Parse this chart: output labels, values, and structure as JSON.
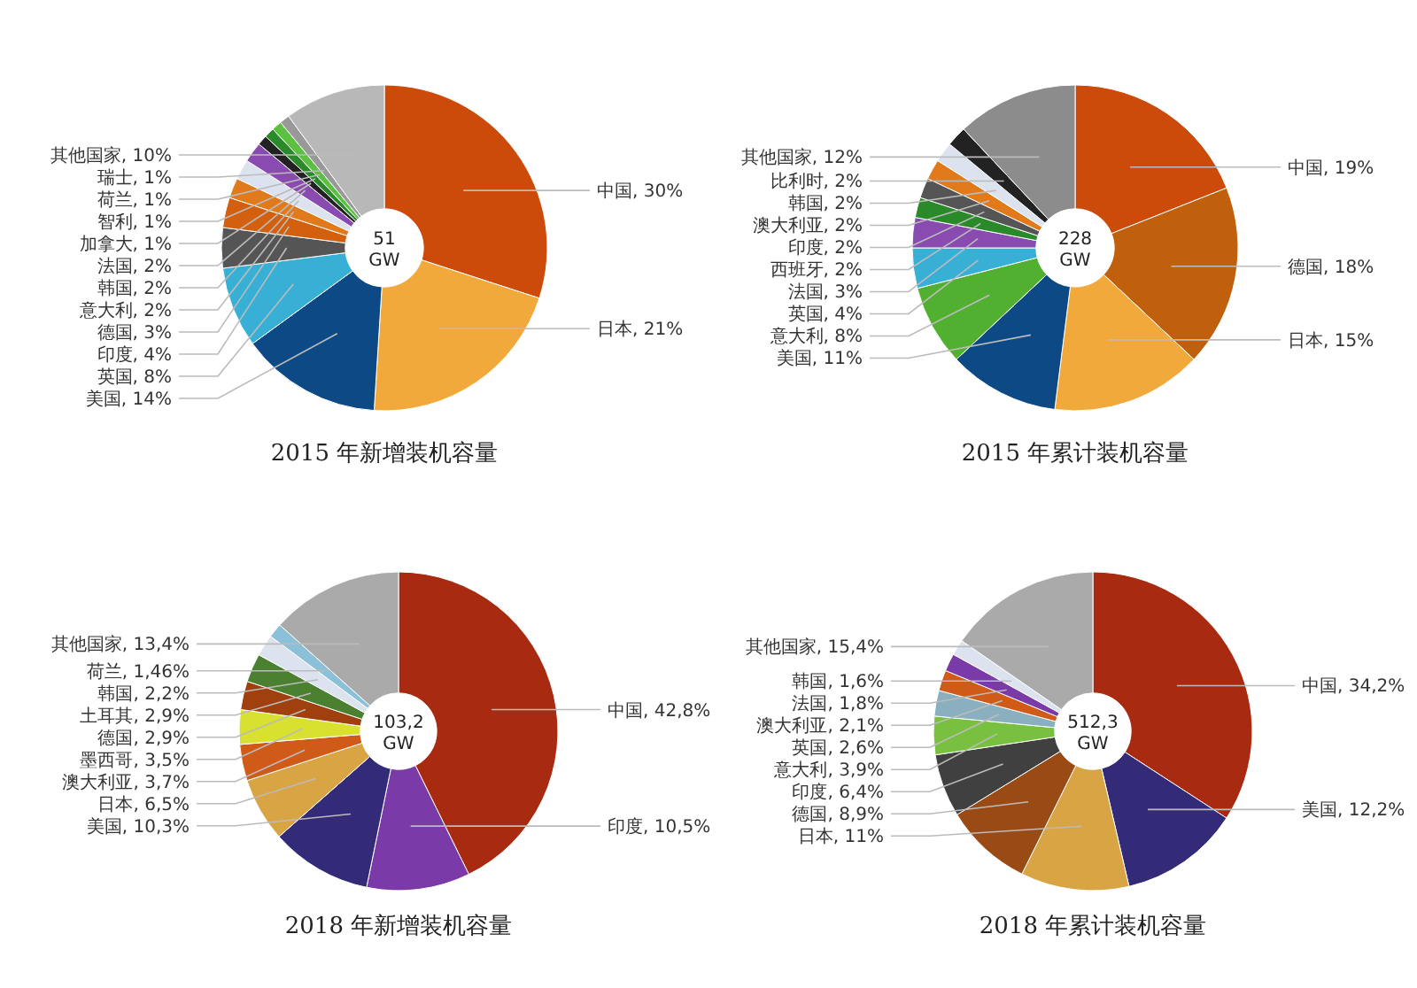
{
  "chart_data": [
    {
      "type": "donut",
      "title": "2015 年新增装机容量",
      "annotations": [
        "51 GW"
      ],
      "categories": [
        "中国",
        "日本",
        "美国",
        "英国",
        "印度",
        "德国",
        "意大利",
        "韩国",
        "法国",
        "加拿大",
        "智利",
        "荷兰",
        "瑞士",
        "其他国家"
      ],
      "values": [
        30,
        21,
        14,
        8,
        4,
        3,
        2,
        2,
        2,
        1,
        1,
        1,
        1,
        10
      ],
      "value_labels": [
        "30%",
        "21%",
        "14%",
        "8%",
        "4%",
        "3%",
        "2%",
        "2%",
        "2%",
        "1%",
        "1%",
        "1%",
        "1%",
        "10%"
      ],
      "colors": [
        "#cc4a0a",
        "#f2a93b",
        "#0d4a85",
        "#38b0d6",
        "#555555",
        "#d2600e",
        "#e07a1a",
        "#dde3ee",
        "#8a4bb0",
        "#222222",
        "#2a8a2a",
        "#5cc040",
        "#999999",
        "#b8b8b8"
      ]
    },
    {
      "type": "donut",
      "title": "2015 年累计装机容量",
      "annotations": [
        "228 GW"
      ],
      "categories": [
        "中国",
        "德国",
        "日本",
        "美国",
        "意大利",
        "英国",
        "法国",
        "西班牙",
        "印度",
        "澳大利亚",
        "韩国",
        "比利时",
        "其他国家"
      ],
      "values": [
        19,
        18,
        15,
        11,
        8,
        4,
        3,
        2,
        2,
        2,
        2,
        2,
        12
      ],
      "value_labels": [
        "19%",
        "18%",
        "15%",
        "11%",
        "8%",
        "4%",
        "3%",
        "2%",
        "2%",
        "2%",
        "2%",
        "2%",
        "12%"
      ],
      "colors": [
        "#cc4a0a",
        "#c0600c",
        "#f2a93b",
        "#0d4a85",
        "#52b030",
        "#38b0d6",
        "#8a4bb0",
        "#2a8a2a",
        "#555555",
        "#e07a1a",
        "#dde3ee",
        "#222222",
        "#8c8c8c"
      ]
    },
    {
      "type": "donut",
      "title": "2018 年新增装机容量",
      "annotations": [
        "103,2 GW"
      ],
      "categories": [
        "中国",
        "印度",
        "美国",
        "日本",
        "澳大利亚",
        "墨西哥",
        "德国",
        "土耳其",
        "韩国",
        "荷兰",
        "其他国家"
      ],
      "values": [
        42.8,
        10.5,
        10.3,
        6.5,
        3.7,
        3.5,
        2.9,
        2.9,
        2.2,
        1.46,
        13.4
      ],
      "value_labels": [
        "42,8%",
        "10,5%",
        "10,3%",
        "6,5%",
        "3,7%",
        "3,5%",
        "2,9%",
        "2,9%",
        "2,2%",
        "1,46%",
        "13,4%"
      ],
      "colors": [
        "#a82a10",
        "#7a3aa8",
        "#332a78",
        "#d8a444",
        "#d05a18",
        "#d8e030",
        "#a0400e",
        "#4a8030",
        "#dde3ee",
        "#8cc0d8",
        "#aaaaaa"
      ]
    },
    {
      "type": "donut",
      "title": "2018 年累计装机容量",
      "annotations": [
        "512,3 GW"
      ],
      "categories": [
        "中国",
        "美国",
        "日本",
        "德国",
        "印度",
        "意大利",
        "英国",
        "澳大利亚",
        "法国",
        "韩国",
        "其他国家"
      ],
      "values": [
        34.2,
        12.2,
        11,
        8.9,
        6.4,
        3.9,
        2.6,
        2.1,
        1.8,
        1.6,
        15.4
      ],
      "value_labels": [
        "34,2%",
        "12,2%",
        "11%",
        "8,9%",
        "6,4%",
        "3,9%",
        "2,6%",
        "2,1%",
        "1,8%",
        "1,6%",
        "15,4%"
      ],
      "colors": [
        "#a82a10",
        "#332a78",
        "#d8a444",
        "#9a4a14",
        "#404040",
        "#7ac040",
        "#8ab0c0",
        "#d05a18",
        "#7a3aa8",
        "#dde3ee",
        "#aaaaaa"
      ]
    }
  ]
}
